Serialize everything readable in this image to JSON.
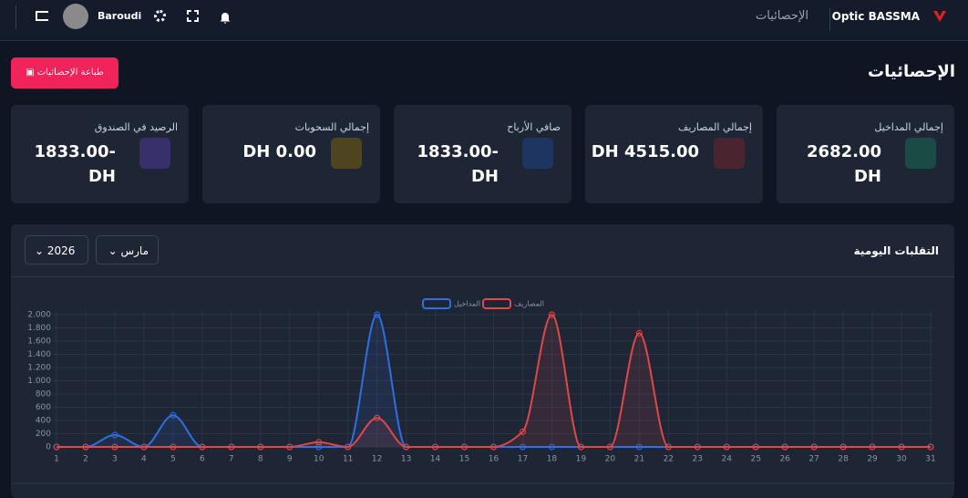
{
  "header": {
    "brand": "Optic BASSMA",
    "page": "الإحصائيات",
    "user": "Baroudi"
  },
  "page_title": "الإحصائيات",
  "print_button": "طباعة الإحصائيات",
  "cards": [
    {
      "label": "إجمالي المداخيل",
      "value": "2682.00 DH"
    },
    {
      "label": "إجمالي المصاريف",
      "value": "DH 4515.00"
    },
    {
      "label": "صافي الأرباح",
      "value": "1833.00- DH"
    },
    {
      "label": "إجمالي السحوبات",
      "value": "DH 0.00"
    },
    {
      "label": "الرصيد في الصندوق",
      "value": "1833.00- DH"
    }
  ],
  "panel": {
    "title": "التقلبات اليومية",
    "month": "مارس",
    "year": "2026"
  },
  "chart_data": {
    "type": "line",
    "x": [
      1,
      2,
      3,
      4,
      5,
      6,
      7,
      8,
      9,
      10,
      11,
      12,
      13,
      14,
      15,
      16,
      17,
      18,
      19,
      20,
      21,
      22,
      23,
      24,
      25,
      26,
      27,
      28,
      29,
      30,
      31
    ],
    "xlim": [
      1,
      31
    ],
    "ylim": [
      0,
      2000
    ],
    "yticks": [
      0,
      200,
      400,
      600,
      800,
      {
        "value": 1000,
        "label": "1.000"
      },
      {
        "value": 1200,
        "label": "1.200"
      },
      {
        "value": 1400,
        "label": "1.400"
      },
      {
        "value": 1600,
        "label": "1.600"
      },
      {
        "value": 1800,
        "label": "1.800"
      },
      {
        "value": 2000,
        "label": "2.000"
      }
    ],
    "grid": true,
    "series": [
      {
        "name": "المداخيل",
        "color": "#2f6fe0",
        "values": [
          0,
          0,
          180,
          0,
          480,
          0,
          0,
          0,
          0,
          0,
          0,
          2000,
          0,
          0,
          0,
          0,
          0,
          0,
          0,
          0,
          0,
          0,
          0,
          0,
          0,
          0,
          0,
          0,
          0,
          0,
          0
        ]
      },
      {
        "name": "المصاريف",
        "color": "#e04848",
        "values": [
          0,
          0,
          0,
          0,
          0,
          0,
          0,
          0,
          0,
          70,
          0,
          440,
          0,
          0,
          0,
          0,
          230,
          2000,
          0,
          0,
          1720,
          0,
          0,
          0,
          0,
          0,
          0,
          0,
          0,
          0,
          0
        ]
      }
    ]
  }
}
